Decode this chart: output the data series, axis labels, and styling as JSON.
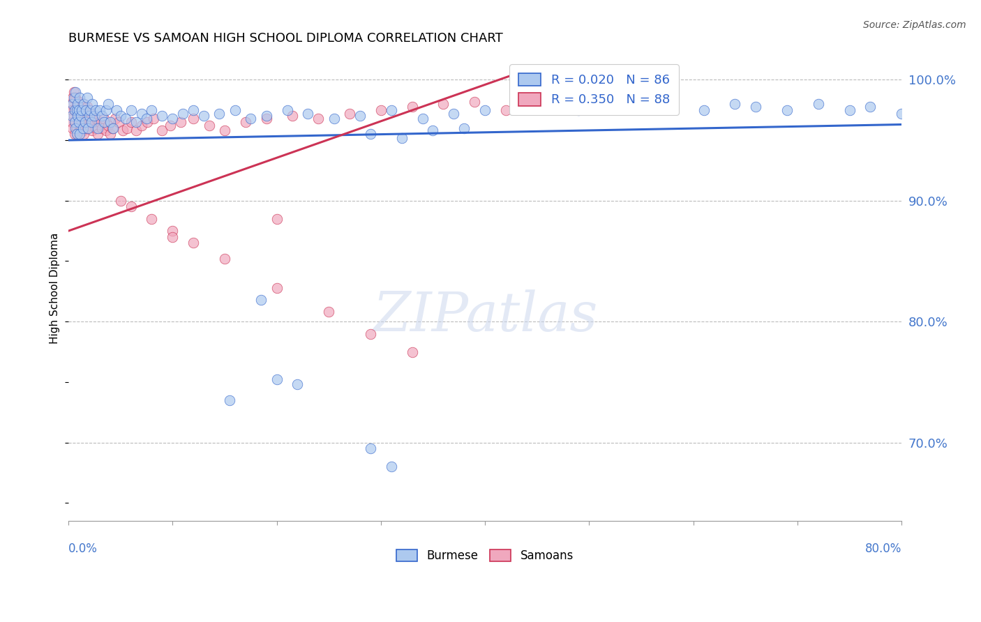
{
  "title": "BURMESE VS SAMOAN HIGH SCHOOL DIPLOMA CORRELATION CHART",
  "source": "Source: ZipAtlas.com",
  "ylabel": "High School Diploma",
  "legend_burmese": "Burmese",
  "legend_samoans": "Samoans",
  "R_burmese": 0.02,
  "N_burmese": 86,
  "R_samoans": 0.35,
  "N_samoans": 88,
  "burmese_color": "#adc9ef",
  "samoans_color": "#f0a8be",
  "trend_burmese_color": "#3366cc",
  "trend_samoans_color": "#cc3355",
  "xlim": [
    0.0,
    0.8
  ],
  "ylim": [
    0.635,
    1.02
  ],
  "ytick_values": [
    0.7,
    0.8,
    0.9,
    1.0
  ],
  "burmese_trend": [
    0.0,
    0.8,
    0.95,
    0.963
  ],
  "samoans_trend": [
    0.0,
    0.43,
    0.875,
    1.005
  ],
  "burmese_x": [
    0.003,
    0.004,
    0.005,
    0.006,
    0.006,
    0.007,
    0.007,
    0.008,
    0.008,
    0.009,
    0.009,
    0.01,
    0.01,
    0.011,
    0.011,
    0.012,
    0.013,
    0.014,
    0.015,
    0.016,
    0.017,
    0.018,
    0.019,
    0.02,
    0.021,
    0.022,
    0.023,
    0.025,
    0.026,
    0.028,
    0.03,
    0.032,
    0.034,
    0.036,
    0.038,
    0.04,
    0.043,
    0.046,
    0.05,
    0.055,
    0.06,
    0.065,
    0.07,
    0.075,
    0.08,
    0.09,
    0.1,
    0.11,
    0.12,
    0.13,
    0.145,
    0.16,
    0.175,
    0.19,
    0.21,
    0.23,
    0.255,
    0.28,
    0.31,
    0.34,
    0.37,
    0.4,
    0.43,
    0.46,
    0.49,
    0.52,
    0.55,
    0.58,
    0.61,
    0.64,
    0.66,
    0.69,
    0.72,
    0.75,
    0.77,
    0.8,
    0.29,
    0.32,
    0.35,
    0.38,
    0.185,
    0.2,
    0.22,
    0.155,
    0.29,
    0.31
  ],
  "burmese_y": [
    0.97,
    0.98,
    0.985,
    0.975,
    0.965,
    0.99,
    0.96,
    0.975,
    0.955,
    0.98,
    0.97,
    0.975,
    0.965,
    0.985,
    0.955,
    0.97,
    0.975,
    0.96,
    0.98,
    0.965,
    0.975,
    0.985,
    0.96,
    0.97,
    0.975,
    0.965,
    0.98,
    0.97,
    0.975,
    0.96,
    0.975,
    0.97,
    0.965,
    0.975,
    0.98,
    0.965,
    0.96,
    0.975,
    0.97,
    0.968,
    0.975,
    0.965,
    0.972,
    0.968,
    0.975,
    0.97,
    0.968,
    0.972,
    0.975,
    0.97,
    0.972,
    0.975,
    0.968,
    0.97,
    0.975,
    0.972,
    0.968,
    0.97,
    0.975,
    0.968,
    0.972,
    0.975,
    0.98,
    0.978,
    0.975,
    0.98,
    0.978,
    0.982,
    0.975,
    0.98,
    0.978,
    0.975,
    0.98,
    0.975,
    0.978,
    0.972,
    0.955,
    0.952,
    0.958,
    0.96,
    0.818,
    0.752,
    0.748,
    0.735,
    0.695,
    0.68
  ],
  "samoans_x": [
    0.002,
    0.003,
    0.003,
    0.004,
    0.004,
    0.005,
    0.005,
    0.006,
    0.006,
    0.007,
    0.007,
    0.008,
    0.008,
    0.009,
    0.009,
    0.01,
    0.01,
    0.011,
    0.011,
    0.012,
    0.012,
    0.013,
    0.013,
    0.014,
    0.014,
    0.015,
    0.015,
    0.016,
    0.017,
    0.018,
    0.018,
    0.019,
    0.02,
    0.02,
    0.021,
    0.022,
    0.023,
    0.024,
    0.025,
    0.026,
    0.027,
    0.028,
    0.03,
    0.032,
    0.034,
    0.036,
    0.038,
    0.04,
    0.042,
    0.045,
    0.048,
    0.052,
    0.056,
    0.06,
    0.065,
    0.07,
    0.076,
    0.082,
    0.09,
    0.098,
    0.108,
    0.12,
    0.135,
    0.15,
    0.17,
    0.19,
    0.215,
    0.24,
    0.27,
    0.3,
    0.33,
    0.36,
    0.39,
    0.42,
    0.45,
    0.48,
    0.05,
    0.06,
    0.08,
    0.1,
    0.12,
    0.15,
    0.2,
    0.25,
    0.29,
    0.33,
    0.2,
    0.1
  ],
  "samoans_y": [
    0.98,
    0.975,
    0.965,
    0.985,
    0.96,
    0.99,
    0.97,
    0.975,
    0.955,
    0.985,
    0.965,
    0.978,
    0.96,
    0.972,
    0.955,
    0.982,
    0.968,
    0.975,
    0.958,
    0.97,
    0.96,
    0.975,
    0.965,
    0.98,
    0.958,
    0.968,
    0.955,
    0.972,
    0.965,
    0.978,
    0.96,
    0.97,
    0.975,
    0.962,
    0.968,
    0.972,
    0.958,
    0.965,
    0.97,
    0.96,
    0.968,
    0.955,
    0.965,
    0.96,
    0.968,
    0.958,
    0.962,
    0.955,
    0.96,
    0.968,
    0.965,
    0.958,
    0.96,
    0.965,
    0.958,
    0.962,
    0.965,
    0.968,
    0.958,
    0.962,
    0.965,
    0.968,
    0.962,
    0.958,
    0.965,
    0.968,
    0.97,
    0.968,
    0.972,
    0.975,
    0.978,
    0.98,
    0.982,
    0.975,
    0.978,
    0.98,
    0.9,
    0.895,
    0.885,
    0.875,
    0.865,
    0.852,
    0.828,
    0.808,
    0.79,
    0.775,
    0.885,
    0.87
  ]
}
